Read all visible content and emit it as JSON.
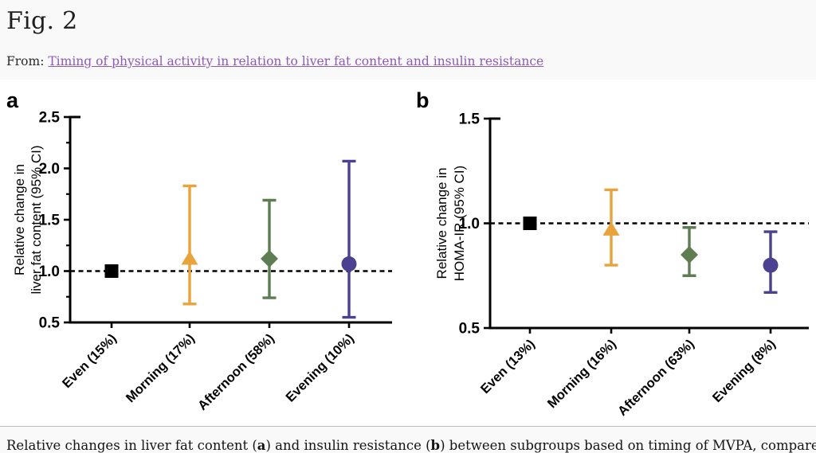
{
  "page": {
    "figure_label": "Fig. 2",
    "from_label": "From: ",
    "source_link": "Timing of physical activity in relation to liver fat content and insulin resistance",
    "caption": {
      "part1": "Relative changes in liver fat content (",
      "bold1": "a",
      "part2": ") and insulin resistance (",
      "bold2": "b",
      "part3": ") between subgroups based on timing of MVPA, compared with an even distribution"
    }
  },
  "colors": {
    "link": "#8d5bb4",
    "axis": "#000000",
    "page_background": "#f9f9f9",
    "figure_background": "#ffffff",
    "even_marker": "#000000",
    "morning_marker": "#e8a33c",
    "afternoon_marker": "#5e7d52",
    "evening_marker": "#4b4190"
  },
  "chart_data": [
    {
      "type": "scatter",
      "panel_label": "a",
      "ylabel_lines": [
        "Relative change in",
        "liver fat content (95% CI)"
      ],
      "ylim": [
        0.5,
        2.5
      ],
      "yticks": [
        0.5,
        1.0,
        1.5,
        2.0,
        2.5
      ],
      "minor_yticks": [
        0.75,
        1.25,
        1.75,
        2.25
      ],
      "reference_line": 1.0,
      "grid": false,
      "legend": "none",
      "categories": [
        "Even (15%)",
        "Morning (17%)",
        "Afternoon (58%)",
        "Evening (10%)"
      ],
      "series": [
        {
          "name": "Even",
          "marker": "square",
          "color": "#000000",
          "value": 1.0,
          "ci": null
        },
        {
          "name": "Morning",
          "marker": "triangle",
          "color": "#e8a33c",
          "value": 1.12,
          "ci": [
            0.68,
            1.83
          ]
        },
        {
          "name": "Afternoon",
          "marker": "diamond",
          "color": "#5e7d52",
          "value": 1.12,
          "ci": [
            0.74,
            1.69
          ]
        },
        {
          "name": "Evening",
          "marker": "circle",
          "color": "#4b4190",
          "value": 1.07,
          "ci": [
            0.55,
            2.07
          ]
        }
      ]
    },
    {
      "type": "scatter",
      "panel_label": "b",
      "ylabel_lines": [
        "Relative change in",
        "HOMA-IR (95% CI)"
      ],
      "ylim": [
        0.5,
        1.5
      ],
      "yticks": [
        0.5,
        1.0,
        1.5
      ],
      "minor_yticks": [],
      "reference_line": 1.0,
      "grid": false,
      "legend": "none",
      "categories": [
        "Even (13%)",
        "Morning (16%)",
        "Afternoon (63%)",
        "Evening (8%)"
      ],
      "series": [
        {
          "name": "Even",
          "marker": "square",
          "color": "#000000",
          "value": 1.0,
          "ci": null
        },
        {
          "name": "Morning",
          "marker": "triangle",
          "color": "#e8a33c",
          "value": 0.97,
          "ci": [
            0.8,
            1.16
          ]
        },
        {
          "name": "Afternoon",
          "marker": "diamond",
          "color": "#5e7d52",
          "value": 0.85,
          "ci": [
            0.75,
            0.98
          ]
        },
        {
          "name": "Evening",
          "marker": "circle",
          "color": "#4b4190",
          "value": 0.8,
          "ci": [
            0.67,
            0.96
          ]
        }
      ]
    }
  ]
}
